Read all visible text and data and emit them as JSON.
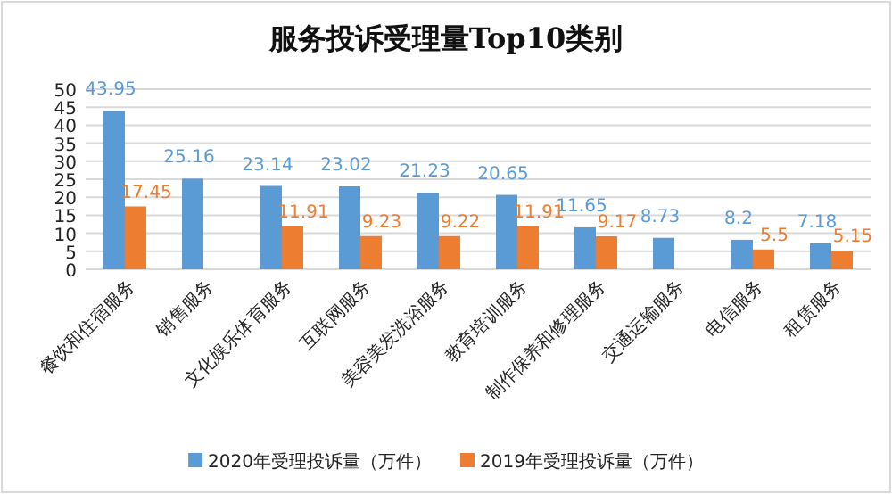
{
  "chart_data": {
    "type": "bar",
    "title": "服务投诉受理量Top10类别",
    "categories": [
      "餐饮和住宿服务",
      "销售服务",
      "文化娱乐体育服务",
      "互联网服务",
      "美容美发洗浴服务",
      "教育培训服务",
      "制作保养和修理服务",
      "交通运输服务",
      "电信服务",
      "租赁服务"
    ],
    "series": [
      {
        "name": "2020年受理投诉量（万件）",
        "color": "#5b9bd5",
        "values": [
          43.95,
          25.16,
          23.14,
          23.02,
          21.23,
          20.65,
          11.65,
          8.73,
          8.2,
          7.18
        ]
      },
      {
        "name": "2019年受理投诉量（万件）",
        "color": "#ed7d31",
        "values": [
          17.45,
          null,
          11.91,
          9.23,
          9.22,
          11.91,
          9.17,
          null,
          5.5,
          5.15
        ]
      }
    ],
    "ylim": [
      0,
      50
    ],
    "yticks": [
      0,
      5,
      10,
      15,
      20,
      25,
      30,
      35,
      40,
      45,
      50
    ],
    "grid": "y",
    "legend": "bottom",
    "data_labels": true
  }
}
